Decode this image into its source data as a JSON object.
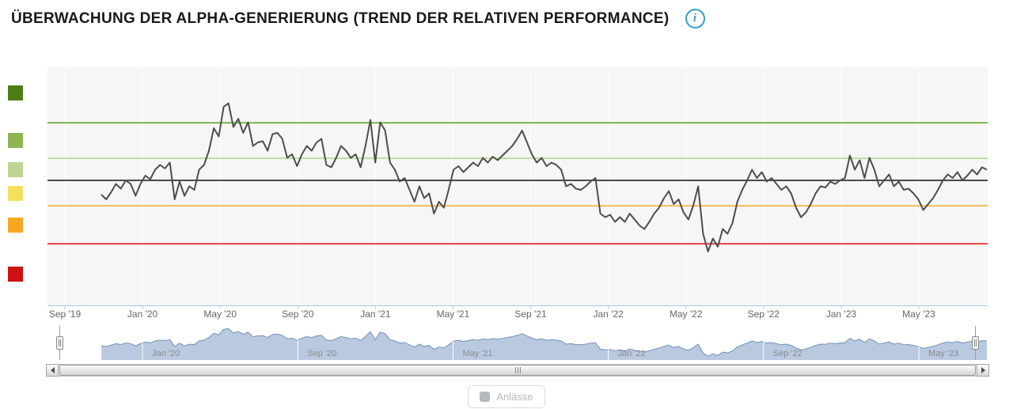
{
  "page": {
    "title": "ÜBERWACHUNG DER ALPHA-GENERIERUNG (TREND DER RELATIVEN PERFORMANCE)",
    "info_glyph": "i",
    "info_color": "#2fa3c6"
  },
  "chart_data": {
    "type": "line",
    "title": "Überwachung der Alpha-Generierung (Trend der relativen Performance)",
    "x_tick_labels": [
      "Sep '19",
      "Jan '20",
      "May '20",
      "Sep '20",
      "Jan '21",
      "May '21",
      "Sep '21",
      "Jan '22",
      "May '22",
      "Sep '22",
      "Jan '23",
      "May '23"
    ],
    "x_range": [
      "Aug '19",
      "Sep '23"
    ],
    "y_axis": {
      "visible": false,
      "note": "normalized trend score, values estimated from plot; baseline = 0"
    },
    "ylim": [
      -5.27,
      4.77
    ],
    "grid": "vertical-only",
    "reference_lines": [
      {
        "name": "upper-strong",
        "color": "#55a01e",
        "value": 2.43,
        "width": 1.5
      },
      {
        "name": "upper",
        "color": "#b0d48a",
        "value": 0.93,
        "width": 1.5
      },
      {
        "name": "baseline",
        "color": "#4a4a4a",
        "value": 0,
        "width": 2
      },
      {
        "name": "lower",
        "color": "#f7a832",
        "value": -1.07,
        "width": 1.5
      },
      {
        "name": "lower-strong",
        "color": "#e60d0d",
        "value": -2.67,
        "width": 1.5
      }
    ],
    "zone_legend_colors": [
      "#4d7d14",
      "#90b350",
      "#bcd593",
      "#f5e05e",
      "#f7a823",
      "#cf1111"
    ],
    "series": [
      {
        "name": "Trend der relativen Performance",
        "color": "#4d4d4d",
        "start": "Nov '19",
        "end": "Aug '23",
        "interval": "weekly",
        "values": [
          -0.6,
          -0.8,
          -0.5,
          -0.15,
          -0.35,
          0,
          -0.15,
          -0.65,
          -0.15,
          0.2,
          0.05,
          0.45,
          0.65,
          0.5,
          0.75,
          -0.8,
          -0.05,
          -0.65,
          -0.25,
          -0.4,
          0.45,
          0.65,
          1.25,
          2.2,
          1.85,
          3.1,
          3.25,
          2.25,
          2.6,
          2.0,
          2.45,
          1.45,
          1.6,
          1.65,
          1.25,
          1.95,
          2.0,
          1.75,
          0.95,
          1.1,
          0.6,
          1.1,
          1.45,
          1.25,
          1.6,
          1.75,
          0.65,
          0.55,
          0.95,
          1.45,
          1.25,
          0.95,
          1.1,
          0.55,
          1.45,
          2.55,
          0.75,
          2.45,
          2.1,
          0.75,
          0.45,
          -0.05,
          0.1,
          -0.4,
          -0.9,
          -0.25,
          -0.75,
          -0.55,
          -1.4,
          -0.9,
          -1.15,
          -0.4,
          0.45,
          0.6,
          0.35,
          0.55,
          0.75,
          0.6,
          0.95,
          0.75,
          1.0,
          0.85,
          1.05,
          1.25,
          1.45,
          1.75,
          2.1,
          1.6,
          1.1,
          0.75,
          0.95,
          0.6,
          0.75,
          0.65,
          0.45,
          -0.25,
          -0.15,
          -0.35,
          -0.4,
          -0.25,
          -0.05,
          0.1,
          -1.4,
          -1.55,
          -1.45,
          -1.75,
          -1.55,
          -1.75,
          -1.4,
          -1.65,
          -1.9,
          -2.05,
          -1.75,
          -1.4,
          -1.15,
          -0.75,
          -0.45,
          -1.0,
          -0.8,
          -1.35,
          -1.65,
          -1.05,
          -0.25,
          -2.25,
          -3.0,
          -2.45,
          -2.8,
          -2.05,
          -2.25,
          -1.8,
          -0.9,
          -0.4,
          0,
          0.45,
          0.1,
          0.35,
          -0.05,
          0.1,
          -0.15,
          -0.4,
          -0.25,
          -0.55,
          -1.15,
          -1.55,
          -1.35,
          -1.0,
          -0.55,
          -0.25,
          -0.3,
          -0.05,
          -0.15,
          0,
          0.1,
          1.05,
          0.45,
          0.85,
          0.1,
          0.95,
          0.45,
          -0.25,
          0,
          0.25,
          -0.25,
          -0.05,
          -0.4,
          -0.35,
          -0.55,
          -0.8,
          -1.25,
          -1.0,
          -0.75,
          -0.4,
          0,
          0.25,
          0.1,
          0.35,
          0,
          0.2,
          0.45,
          0.25,
          0.55,
          0.45
        ]
      }
    ],
    "navigator": {
      "labels": [
        "Jan '20",
        "Sep '20",
        "May '21",
        "Jan '22",
        "Sep '22",
        "May '23"
      ],
      "tick_indices": [
        1,
        3,
        5,
        7,
        9,
        11
      ],
      "area_color": "#b9c9e0",
      "line_color": "#7391b8"
    }
  },
  "legend": {
    "items": [
      {
        "label": "Anlässe",
        "enabled": false,
        "swatch_color": "#b6b9bd"
      }
    ]
  }
}
